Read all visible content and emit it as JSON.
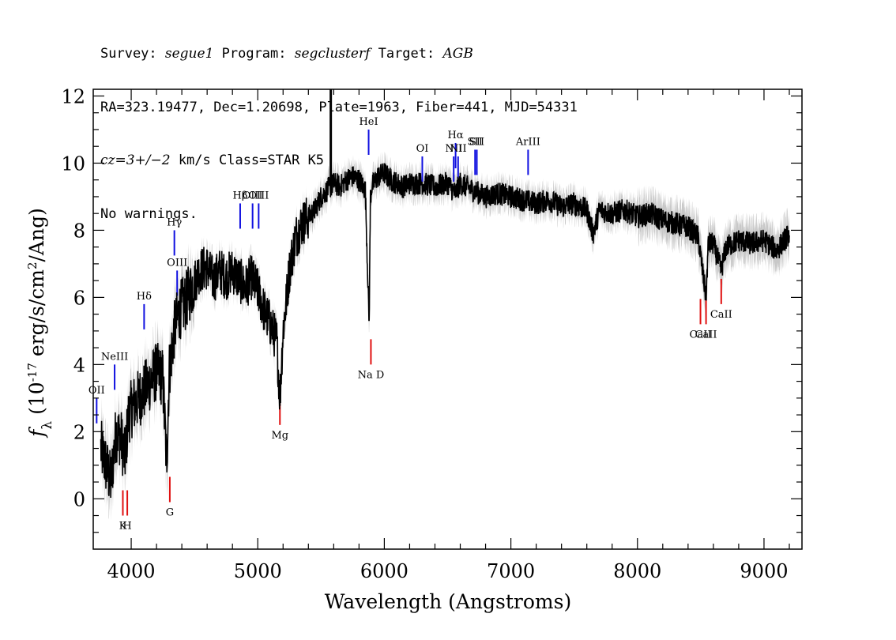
{
  "header": {
    "line1": {
      "survey_label": "Survey: ",
      "survey": "segue1",
      "program_label": " Program: ",
      "program": "segclusterf",
      "target_label": " Target: ",
      "target": "AGB"
    },
    "line2": "RA=323.19477, Dec=1.20698, Plate=1963, Fiber=441, MJD=54331",
    "line3": {
      "cz": "cz=3+/−2",
      "rest": " km/s Class=STAR K5"
    },
    "line4": "No warnings."
  },
  "colors": {
    "spectrum": "#000000",
    "error_band": "#c8c8c8",
    "emission_line": "#1010e0",
    "absorption_line": "#e01010"
  },
  "chart_data": {
    "type": "line",
    "xlabel": "Wavelength (Angstroms)",
    "ylabel": "f_λ (10^-17 erg/s/cm^2/Ang)",
    "xlim": [
      3700,
      9300
    ],
    "ylim": [
      -1.5,
      12.2
    ],
    "x_ticks": [
      4000,
      5000,
      6000,
      7000,
      8000,
      9000
    ],
    "y_ticks": [
      0,
      2,
      4,
      6,
      8,
      10,
      12
    ],
    "series": [
      {
        "x": [
          3760,
          3800,
          3840,
          3880,
          3920,
          3950,
          3980,
          4020,
          4060,
          4100,
          4150,
          4200,
          4250,
          4280,
          4300,
          4340,
          4380,
          4420,
          4480,
          4540,
          4600,
          4650,
          4700,
          4750,
          4800,
          4860,
          4900,
          4950,
          5000,
          5050,
          5100,
          5150,
          5175,
          5200,
          5250,
          5300,
          5350,
          5400,
          5450,
          5500,
          5550,
          5600,
          5650,
          5700,
          5750,
          5800,
          5850,
          5880,
          5890,
          5900,
          5950,
          6000,
          6050,
          6100,
          6150,
          6200,
          6300,
          6400,
          6500,
          6560,
          6600,
          6700,
          6800,
          6900,
          7000,
          7100,
          7200,
          7300,
          7400,
          7500,
          7600,
          7650,
          7700,
          7800,
          7900,
          8000,
          8100,
          8200,
          8300,
          8400,
          8480,
          8500,
          8542,
          8560,
          8600,
          8662,
          8700,
          8800,
          8900,
          9000,
          9100,
          9200
        ],
        "y": [
          1.5,
          1.0,
          0.5,
          2.0,
          1.8,
          1.2,
          2.5,
          2.8,
          3.0,
          3.2,
          3.5,
          3.8,
          3.6,
          1.0,
          3.8,
          5.0,
          5.6,
          5.8,
          6.3,
          6.8,
          6.9,
          6.5,
          6.8,
          6.6,
          6.8,
          6.5,
          6.3,
          6.6,
          6.2,
          5.6,
          5.2,
          4.7,
          3.0,
          5.0,
          6.8,
          7.8,
          8.2,
          8.4,
          8.6,
          9.0,
          9.2,
          9.4,
          9.3,
          9.5,
          9.6,
          9.5,
          9.2,
          5.2,
          9.0,
          9.3,
          9.6,
          9.7,
          9.5,
          9.4,
          9.3,
          9.4,
          9.4,
          9.3,
          9.4,
          9.1,
          9.4,
          9.2,
          9.0,
          9.1,
          9.0,
          8.9,
          8.8,
          8.9,
          8.7,
          8.8,
          8.6,
          7.9,
          8.6,
          8.5,
          8.6,
          8.4,
          8.5,
          8.3,
          8.2,
          8.1,
          7.8,
          7.2,
          6.0,
          7.6,
          7.6,
          6.8,
          7.5,
          7.7,
          7.6,
          7.7,
          7.4,
          7.9
        ]
      }
    ],
    "spike": {
      "x": 5577,
      "y_top": 12.2
    },
    "emission_lines": [
      {
        "label": "OII",
        "x": 3727,
        "y": 3.0
      },
      {
        "label": "NeIII",
        "x": 3869,
        "y": 4.0
      },
      {
        "label": "Hδ",
        "x": 4102,
        "y": 5.8
      },
      {
        "label": "Hγ",
        "x": 4341,
        "y": 8.0
      },
      {
        "label": "OIII",
        "x": 4363,
        "y": 6.8
      },
      {
        "label": "Hβ",
        "x": 4861,
        "y": 8.8
      },
      {
        "label": "OIII",
        "x": 4959,
        "y": 8.8
      },
      {
        "label": "OIII",
        "x": 5007,
        "y": 8.8
      },
      {
        "label": "HeI",
        "x": 5876,
        "y": 11.0
      },
      {
        "label": "OI",
        "x": 6300,
        "y": 10.2
      },
      {
        "label": "NII",
        "x": 6548,
        "y": 10.2
      },
      {
        "label": "Hα",
        "x": 6563,
        "y": 10.6
      },
      {
        "label": "NII",
        "x": 6583,
        "y": 10.2
      },
      {
        "label": "SII",
        "x": 6717,
        "y": 10.4
      },
      {
        "label": "SII",
        "x": 6731,
        "y": 10.4
      },
      {
        "label": "ArIII",
        "x": 7136,
        "y": 10.4
      }
    ],
    "absorption_lines": [
      {
        "label": "K",
        "x": 3934,
        "y": -0.5
      },
      {
        "label": "H",
        "x": 3969,
        "y": -0.5
      },
      {
        "label": "G",
        "x": 4305,
        "y": -0.1
      },
      {
        "label": "Mg",
        "x": 5175,
        "y": 2.2
      },
      {
        "label": "Na D",
        "x": 5894,
        "y": 4.0
      },
      {
        "label": "CaII",
        "x": 8498,
        "y": 5.2
      },
      {
        "label": "CaII",
        "x": 8542,
        "y": 5.2
      },
      {
        "label": "CaII",
        "x": 8662,
        "y": 5.8
      }
    ]
  }
}
